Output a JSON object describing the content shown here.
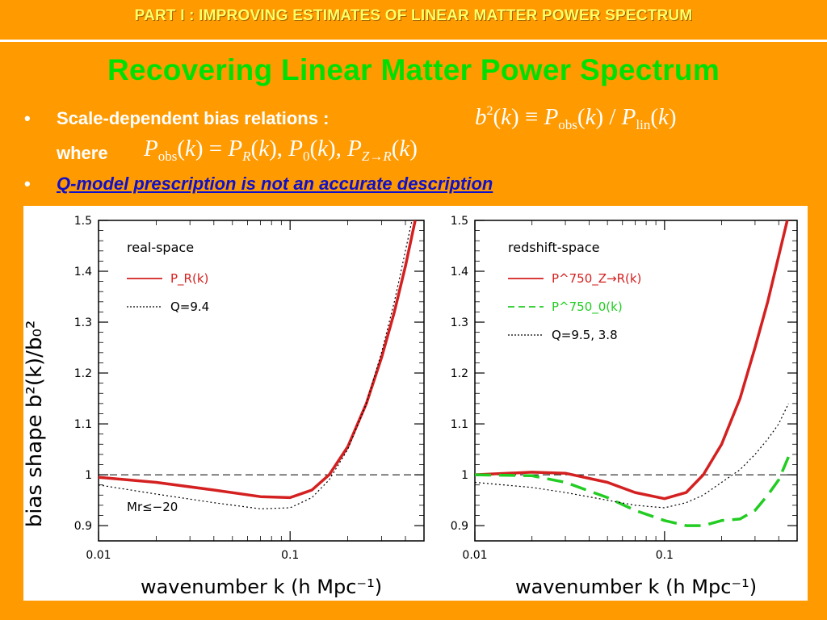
{
  "header": {
    "text": "PART I : IMPROVING ESTIMATES OF LINEAR MATTER POWER SPECTRUM"
  },
  "title": "Recovering Linear Matter Power Spectrum",
  "bullets": [
    {
      "marker": "•",
      "text": "Scale-dependent bias relations :",
      "formula": "b²(k) ≡ P_obs(k) / P_lin(k)",
      "where_label": "where",
      "where_formula": "P_obs(k) = P_R(k), P_0(k), P_Z→R(k)"
    },
    {
      "marker": "•",
      "text": "Q-model prescription is not an accurate description"
    }
  ],
  "chart_data": [
    {
      "type": "line",
      "panel_label": "real-space",
      "xscale": "log",
      "xlim": [
        0.01,
        0.5
      ],
      "ylim": [
        0.87,
        1.5
      ],
      "xticks": [
        "0.01",
        "0.1"
      ],
      "yticks": [
        "0.9",
        "1",
        "1.1",
        "1.2",
        "1.3",
        "1.4",
        "1.5"
      ],
      "xlabel": "wavenumber  k  (h Mpc⁻¹)",
      "ylabel": "bias shape  b²(k)/b₀²",
      "annotation": "Mr≤−20",
      "reference_line": 1.0,
      "series": [
        {
          "name": "P_R(k)",
          "color": "#d42020",
          "style": "solid",
          "x": [
            0.01,
            0.02,
            0.04,
            0.07,
            0.1,
            0.13,
            0.16,
            0.2,
            0.25,
            0.3,
            0.35,
            0.4,
            0.45
          ],
          "y": [
            0.995,
            0.985,
            0.97,
            0.957,
            0.955,
            0.97,
            1.0,
            1.055,
            1.14,
            1.23,
            1.32,
            1.41,
            1.5
          ]
        },
        {
          "name": "Q=9.4",
          "color": "#000000",
          "style": "dotted",
          "x": [
            0.01,
            0.02,
            0.04,
            0.07,
            0.1,
            0.13,
            0.16,
            0.2,
            0.25,
            0.3,
            0.35,
            0.4,
            0.45
          ],
          "y": [
            0.98,
            0.962,
            0.945,
            0.933,
            0.935,
            0.955,
            0.99,
            1.05,
            1.14,
            1.24,
            1.34,
            1.44,
            1.53
          ]
        }
      ]
    },
    {
      "type": "line",
      "panel_label": "redshift-space",
      "xscale": "log",
      "xlim": [
        0.01,
        0.5
      ],
      "ylim": [
        0.87,
        1.5
      ],
      "xticks": [
        "0.01",
        "0.1"
      ],
      "yticks": [
        "0.9",
        "1",
        "1.1",
        "1.2",
        "1.3",
        "1.4",
        "1.5"
      ],
      "xlabel": "wavenumber  k  (h Mpc⁻¹)",
      "ylabel": "",
      "reference_line": 1.0,
      "series": [
        {
          "name": "P^750_Z→R(k)",
          "color": "#d42020",
          "style": "solid",
          "x": [
            0.01,
            0.02,
            0.03,
            0.05,
            0.07,
            0.1,
            0.13,
            0.16,
            0.2,
            0.25,
            0.3,
            0.35,
            0.4,
            0.45
          ],
          "y": [
            1.0,
            1.005,
            1.003,
            0.985,
            0.965,
            0.953,
            0.965,
            1.0,
            1.06,
            1.15,
            1.25,
            1.34,
            1.43,
            1.51
          ]
        },
        {
          "name": "P^750_0(k)",
          "color": "#22cc22",
          "style": "dashed",
          "x": [
            0.01,
            0.02,
            0.03,
            0.05,
            0.07,
            0.1,
            0.13,
            0.16,
            0.2,
            0.25,
            0.3,
            0.35,
            0.4,
            0.45
          ],
          "y": [
            1.0,
            0.998,
            0.985,
            0.955,
            0.93,
            0.91,
            0.9,
            0.9,
            0.91,
            0.913,
            0.93,
            0.96,
            0.99,
            1.035
          ]
        },
        {
          "name": "Q=9.5, 3.8",
          "color": "#000000",
          "style": "dotted",
          "x": [
            0.01,
            0.02,
            0.03,
            0.05,
            0.07,
            0.1,
            0.13,
            0.16,
            0.2,
            0.25,
            0.3,
            0.35,
            0.4,
            0.45
          ],
          "y": [
            0.985,
            0.975,
            0.965,
            0.95,
            0.94,
            0.935,
            0.945,
            0.96,
            0.985,
            1.01,
            1.04,
            1.07,
            1.1,
            1.14
          ]
        }
      ]
    }
  ]
}
